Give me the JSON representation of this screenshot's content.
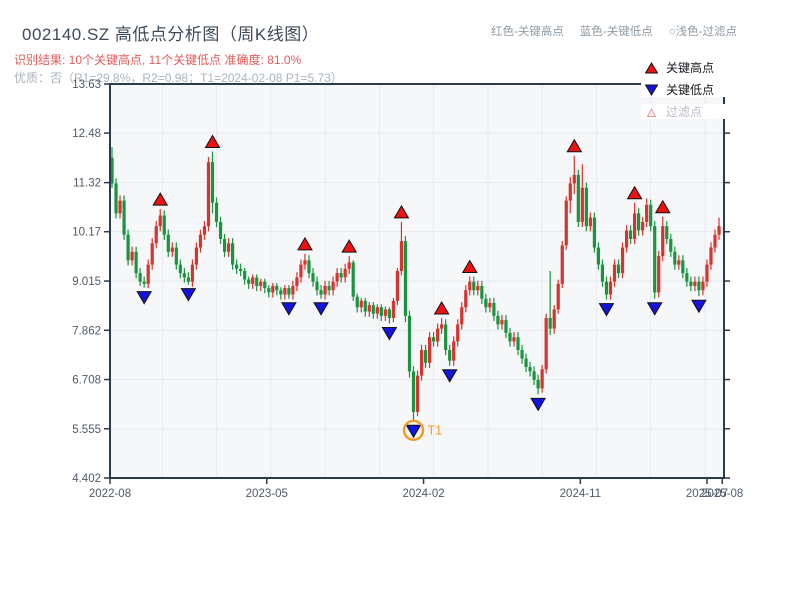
{
  "header": {
    "title": "002140.SZ 高低点分析图（周K线图）",
    "subtitle_red": "识别结果: 10个关键高点, 11个关键低点  准确度: 81.0%",
    "subtitle_gray": "优质：否（R1=29.8%，R2=0.98；T1=2024-02-08 P1=5.73）",
    "hint_high": "红色-关键高点",
    "hint_low": "蓝色-关键低点",
    "hint_filtered": "○浅色-过滤点"
  },
  "colors": {
    "up": "#d6342e",
    "down": "#18953e",
    "key_high": "#ee1111",
    "key_low": "#1414dd",
    "marker_edge": "#111111",
    "t1": "#f59a23",
    "filtered_fill": "#fdf0f0",
    "filtered_edge": "#e09a9a",
    "axis": "#2b3b4e",
    "grid": "#e8eaed",
    "plot_bg": "#f6f7f9",
    "tick_label": "#4f5a68"
  },
  "chart_data": {
    "type": "candlestick",
    "title": "002140.SZ 高低点分析图（周K线图）",
    "legend": {
      "high": "关键高点",
      "low": "关键低点",
      "filtered": "过滤点"
    },
    "ylim": [
      4.402,
      13.63
    ],
    "y_ticks": [
      "13.63",
      "12.48",
      "11.32",
      "10.17",
      "9.015",
      "7.862",
      "6.708",
      "5.555",
      "4.402"
    ],
    "x_ticks": [
      {
        "label": "2022-08",
        "week": 0
      },
      {
        "label": "2023-05",
        "week": 39
      },
      {
        "label": "2024-02",
        "week": 78
      },
      {
        "label": "2024-11",
        "week": 117
      },
      {
        "label": "2025-07",
        "week": 148.5
      },
      {
        "label": "2025-08",
        "week": 152.3
      }
    ],
    "candles": [
      [
        11.9,
        12.15,
        11.2,
        11.3
      ],
      [
        11.3,
        11.42,
        10.48,
        10.6
      ],
      [
        10.6,
        11.02,
        10.48,
        10.9
      ],
      [
        10.9,
        11.02,
        9.98,
        10.1
      ],
      [
        10.1,
        10.22,
        9.38,
        9.5
      ],
      [
        9.5,
        9.82,
        9.38,
        9.7
      ],
      [
        9.7,
        9.82,
        9.08,
        9.2
      ],
      [
        9.2,
        9.32,
        8.9,
        9.0
      ],
      [
        9.0,
        9.12,
        8.86,
        8.95
      ],
      [
        8.95,
        9.52,
        8.85,
        9.4
      ],
      [
        9.4,
        10.02,
        9.28,
        9.9
      ],
      [
        9.9,
        10.42,
        9.78,
        10.3
      ],
      [
        10.3,
        10.7,
        10.18,
        10.55
      ],
      [
        10.55,
        10.67,
        9.98,
        10.1
      ],
      [
        10.1,
        10.22,
        9.58,
        9.7
      ],
      [
        9.7,
        9.92,
        9.58,
        9.8
      ],
      [
        9.8,
        9.92,
        9.28,
        9.4
      ],
      [
        9.4,
        9.52,
        9.08,
        9.2
      ],
      [
        9.2,
        9.32,
        8.98,
        9.1
      ],
      [
        9.1,
        9.22,
        8.93,
        9.0
      ],
      [
        9.0,
        9.52,
        8.88,
        9.4
      ],
      [
        9.4,
        9.92,
        9.28,
        9.8
      ],
      [
        9.8,
        10.22,
        9.68,
        10.1
      ],
      [
        10.1,
        10.42,
        9.98,
        10.3
      ],
      [
        10.3,
        11.92,
        10.18,
        11.8
      ],
      [
        11.8,
        12.05,
        10.6,
        10.85
      ],
      [
        10.85,
        10.97,
        10.28,
        10.4
      ],
      [
        10.4,
        10.52,
        9.88,
        10.0
      ],
      [
        10.0,
        10.12,
        9.58,
        9.7
      ],
      [
        9.7,
        10.02,
        9.58,
        9.9
      ],
      [
        9.9,
        10.02,
        9.28,
        9.4
      ],
      [
        9.4,
        9.52,
        9.18,
        9.3
      ],
      [
        9.3,
        9.42,
        9.13,
        9.25
      ],
      [
        9.25,
        9.32,
        8.93,
        9.05
      ],
      [
        9.05,
        9.12,
        8.83,
        8.95
      ],
      [
        8.95,
        9.17,
        8.83,
        9.1
      ],
      [
        9.1,
        9.17,
        8.78,
        8.9
      ],
      [
        8.9,
        9.07,
        8.78,
        9.0
      ],
      [
        9.0,
        9.07,
        8.73,
        8.85
      ],
      [
        8.85,
        8.92,
        8.63,
        8.75
      ],
      [
        8.75,
        8.97,
        8.63,
        8.9
      ],
      [
        8.9,
        8.97,
        8.68,
        8.8
      ],
      [
        8.8,
        8.87,
        8.58,
        8.7
      ],
      [
        8.7,
        8.92,
        8.58,
        8.85
      ],
      [
        8.85,
        8.92,
        8.6,
        8.7
      ],
      [
        8.7,
        9.02,
        8.58,
        8.9
      ],
      [
        8.9,
        9.22,
        8.78,
        9.1
      ],
      [
        9.1,
        9.52,
        8.98,
        9.4
      ],
      [
        9.4,
        9.65,
        9.28,
        9.5
      ],
      [
        9.5,
        9.62,
        9.08,
        9.2
      ],
      [
        9.2,
        9.32,
        8.88,
        9.0
      ],
      [
        9.0,
        9.12,
        8.68,
        8.8
      ],
      [
        8.8,
        8.92,
        8.6,
        8.7
      ],
      [
        8.7,
        9.02,
        8.58,
        8.9
      ],
      [
        8.9,
        9.02,
        8.68,
        8.8
      ],
      [
        8.8,
        9.12,
        8.68,
        9.0
      ],
      [
        9.0,
        9.32,
        8.88,
        9.2
      ],
      [
        9.2,
        9.32,
        8.98,
        9.1
      ],
      [
        9.1,
        9.42,
        8.98,
        9.3
      ],
      [
        9.3,
        9.6,
        9.18,
        9.45
      ],
      [
        9.45,
        9.5,
        8.55,
        8.65
      ],
      [
        8.65,
        8.72,
        8.28,
        8.4
      ],
      [
        8.4,
        8.62,
        8.28,
        8.55
      ],
      [
        8.55,
        8.62,
        8.18,
        8.3
      ],
      [
        8.3,
        8.52,
        8.18,
        8.45
      ],
      [
        8.45,
        8.52,
        8.13,
        8.25
      ],
      [
        8.25,
        8.47,
        8.13,
        8.4
      ],
      [
        8.4,
        8.47,
        8.08,
        8.2
      ],
      [
        8.2,
        8.42,
        8.08,
        8.35
      ],
      [
        8.35,
        8.4,
        8.02,
        8.15
      ],
      [
        8.15,
        8.62,
        8.05,
        8.55
      ],
      [
        8.55,
        9.32,
        8.45,
        9.25
      ],
      [
        9.25,
        10.4,
        9.15,
        9.95
      ],
      [
        9.95,
        10.07,
        8.05,
        8.2
      ],
      [
        8.2,
        8.32,
        6.75,
        6.9
      ],
      [
        6.9,
        7.02,
        5.73,
        5.95
      ],
      [
        5.95,
        6.92,
        5.85,
        6.8
      ],
      [
        6.8,
        7.52,
        6.68,
        7.4
      ],
      [
        7.4,
        7.52,
        6.98,
        7.1
      ],
      [
        7.1,
        7.82,
        6.98,
        7.7
      ],
      [
        7.7,
        7.82,
        7.48,
        7.6
      ],
      [
        7.6,
        8.02,
        7.48,
        7.9
      ],
      [
        7.9,
        8.15,
        7.78,
        8.0
      ],
      [
        8.0,
        8.12,
        7.28,
        7.4
      ],
      [
        7.4,
        7.52,
        7.03,
        7.15
      ],
      [
        7.15,
        7.72,
        7.03,
        7.6
      ],
      [
        7.6,
        8.12,
        7.48,
        8.0
      ],
      [
        8.0,
        8.52,
        7.88,
        8.4
      ],
      [
        8.4,
        8.92,
        8.28,
        8.8
      ],
      [
        8.8,
        9.12,
        8.68,
        9.0
      ],
      [
        9.0,
        9.12,
        8.68,
        8.8
      ],
      [
        8.8,
        9.02,
        8.68,
        8.9
      ],
      [
        8.9,
        9.02,
        8.48,
        8.6
      ],
      [
        8.6,
        8.72,
        8.28,
        8.4
      ],
      [
        8.4,
        8.62,
        8.28,
        8.5
      ],
      [
        8.5,
        8.62,
        8.08,
        8.2
      ],
      [
        8.2,
        8.32,
        7.88,
        8.0
      ],
      [
        8.0,
        8.22,
        7.88,
        8.1
      ],
      [
        8.1,
        8.22,
        7.68,
        7.8
      ],
      [
        7.8,
        7.92,
        7.48,
        7.6
      ],
      [
        7.6,
        7.82,
        7.48,
        7.7
      ],
      [
        7.7,
        7.82,
        7.28,
        7.4
      ],
      [
        7.4,
        7.52,
        7.08,
        7.2
      ],
      [
        7.2,
        7.32,
        6.88,
        7.0
      ],
      [
        7.0,
        7.12,
        6.78,
        6.9
      ],
      [
        6.9,
        7.02,
        6.58,
        6.7
      ],
      [
        6.7,
        6.82,
        6.36,
        6.5
      ],
      [
        6.5,
        7.05,
        6.4,
        6.95
      ],
      [
        6.95,
        8.25,
        6.85,
        8.15
      ],
      [
        8.15,
        9.25,
        7.75,
        7.9
      ],
      [
        7.9,
        8.45,
        7.78,
        8.35
      ],
      [
        8.35,
        9.05,
        8.25,
        8.95
      ],
      [
        8.95,
        9.95,
        8.85,
        9.85
      ],
      [
        9.85,
        11.0,
        9.75,
        10.9
      ],
      [
        10.9,
        11.45,
        10.6,
        11.3
      ],
      [
        11.3,
        11.95,
        11.05,
        11.5
      ],
      [
        11.5,
        11.62,
        10.28,
        10.4
      ],
      [
        10.4,
        11.75,
        10.28,
        11.2
      ],
      [
        11.2,
        11.32,
        10.18,
        10.3
      ],
      [
        10.3,
        10.62,
        10.18,
        10.5
      ],
      [
        10.5,
        10.62,
        9.68,
        9.8
      ],
      [
        9.8,
        9.92,
        9.28,
        9.4
      ],
      [
        9.4,
        9.52,
        8.88,
        9.0
      ],
      [
        9.0,
        9.12,
        8.58,
        8.7
      ],
      [
        8.7,
        9.12,
        8.58,
        9.0
      ],
      [
        9.0,
        9.52,
        8.88,
        9.4
      ],
      [
        9.4,
        9.52,
        9.08,
        9.2
      ],
      [
        9.2,
        9.92,
        9.08,
        9.8
      ],
      [
        9.8,
        10.32,
        9.68,
        10.2
      ],
      [
        10.2,
        10.32,
        9.88,
        10.0
      ],
      [
        10.0,
        10.85,
        9.88,
        10.6
      ],
      [
        10.6,
        10.72,
        10.08,
        10.2
      ],
      [
        10.2,
        10.52,
        10.08,
        10.4
      ],
      [
        10.4,
        10.95,
        10.28,
        10.8
      ],
      [
        10.8,
        10.92,
        10.18,
        10.3
      ],
      [
        10.3,
        10.42,
        8.6,
        8.75
      ],
      [
        8.75,
        9.72,
        8.63,
        9.6
      ],
      [
        9.6,
        10.52,
        9.48,
        10.3
      ],
      [
        10.3,
        10.42,
        9.88,
        10.0
      ],
      [
        10.0,
        10.12,
        9.58,
        9.7
      ],
      [
        9.7,
        9.82,
        9.28,
        9.4
      ],
      [
        9.4,
        9.62,
        9.28,
        9.5
      ],
      [
        9.5,
        9.62,
        9.08,
        9.2
      ],
      [
        9.2,
        9.32,
        8.88,
        9.0
      ],
      [
        9.0,
        9.12,
        8.78,
        8.9
      ],
      [
        8.9,
        9.12,
        8.78,
        9.0
      ],
      [
        9.0,
        9.12,
        8.66,
        8.8
      ],
      [
        8.8,
        9.12,
        8.68,
        9.0
      ],
      [
        9.0,
        9.52,
        8.88,
        9.4
      ],
      [
        9.4,
        9.92,
        9.28,
        9.8
      ],
      [
        9.8,
        10.22,
        9.68,
        10.1
      ],
      [
        10.1,
        10.5,
        9.98,
        10.3
      ]
    ],
    "key_highs": [
      [
        12,
        10.7
      ],
      [
        25,
        12.05
      ],
      [
        48,
        9.65
      ],
      [
        59,
        9.6
      ],
      [
        72,
        10.4
      ],
      [
        82,
        8.15
      ],
      [
        89,
        9.12
      ],
      [
        115,
        11.95
      ],
      [
        130,
        10.85
      ],
      [
        137,
        10.52
      ]
    ],
    "key_lows": [
      [
        8,
        8.86
      ],
      [
        19,
        8.93
      ],
      [
        44,
        8.6
      ],
      [
        52,
        8.6
      ],
      [
        69,
        8.02
      ],
      [
        75,
        5.73
      ],
      [
        84,
        7.03
      ],
      [
        106,
        6.36
      ],
      [
        123,
        8.58
      ],
      [
        135,
        8.6
      ],
      [
        146,
        8.66
      ]
    ],
    "t1": {
      "week": 75,
      "price": 5.73,
      "label": "T1"
    }
  }
}
